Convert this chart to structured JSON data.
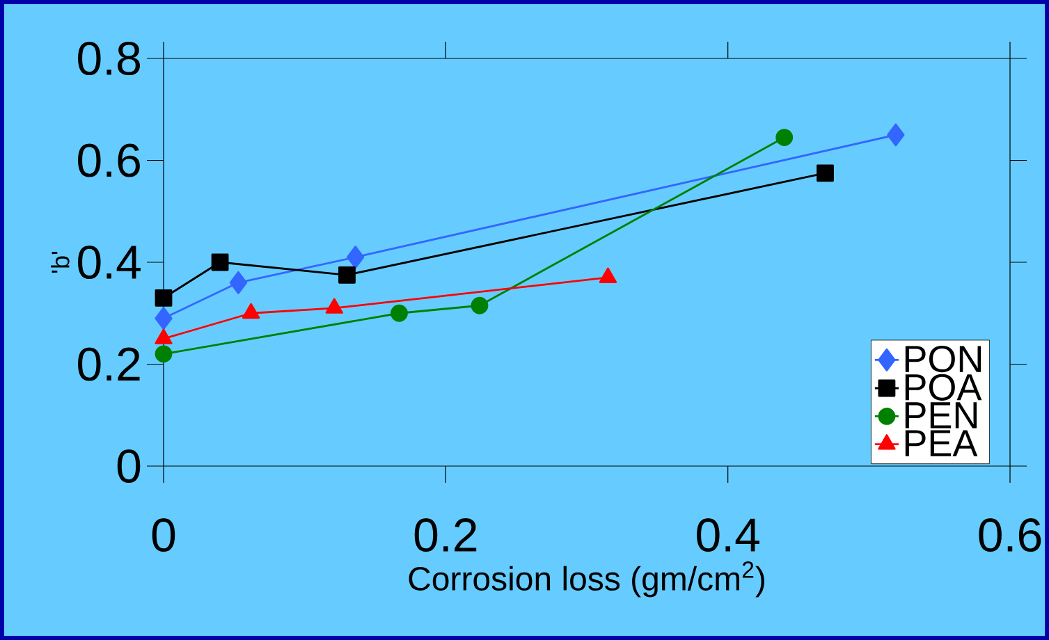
{
  "chart_data": {
    "type": "line",
    "xlabel": "Corrosion loss (gm/cm$^{2}$)",
    "ylabel": "'b'",
    "xlim": [
      0,
      0.6
    ],
    "ylim": [
      0,
      0.8
    ],
    "xticks": [
      0,
      0.2,
      0.4,
      0.6
    ],
    "yticks": [
      0,
      0.2,
      0.4,
      0.6,
      0.8
    ],
    "grid": false,
    "legend": "bottom right",
    "line_style": "solid",
    "series": [
      {
        "name": "PON",
        "color": "#3366ff",
        "marker": "diamond",
        "x": [
          0,
          0.053,
          0.136,
          0.519
        ],
        "values": [
          0.29,
          0.36,
          0.41,
          0.65
        ]
      },
      {
        "name": "POA",
        "color": "#000000",
        "marker": "square",
        "x": [
          0,
          0.04,
          0.13,
          0.469
        ],
        "values": [
          0.33,
          0.4,
          0.375,
          0.575
        ]
      },
      {
        "name": "PEN",
        "color": "#008000",
        "marker": "circle",
        "x": [
          0,
          0.167,
          0.224,
          0.44
        ],
        "values": [
          0.22,
          0.3,
          0.315,
          0.645
        ]
      },
      {
        "name": "PEA",
        "color": "#ff0000",
        "marker": "triangle",
        "x": [
          0,
          0.062,
          0.121,
          0.315
        ],
        "values": [
          0.25,
          0.3,
          0.31,
          0.37
        ]
      }
    ]
  }
}
